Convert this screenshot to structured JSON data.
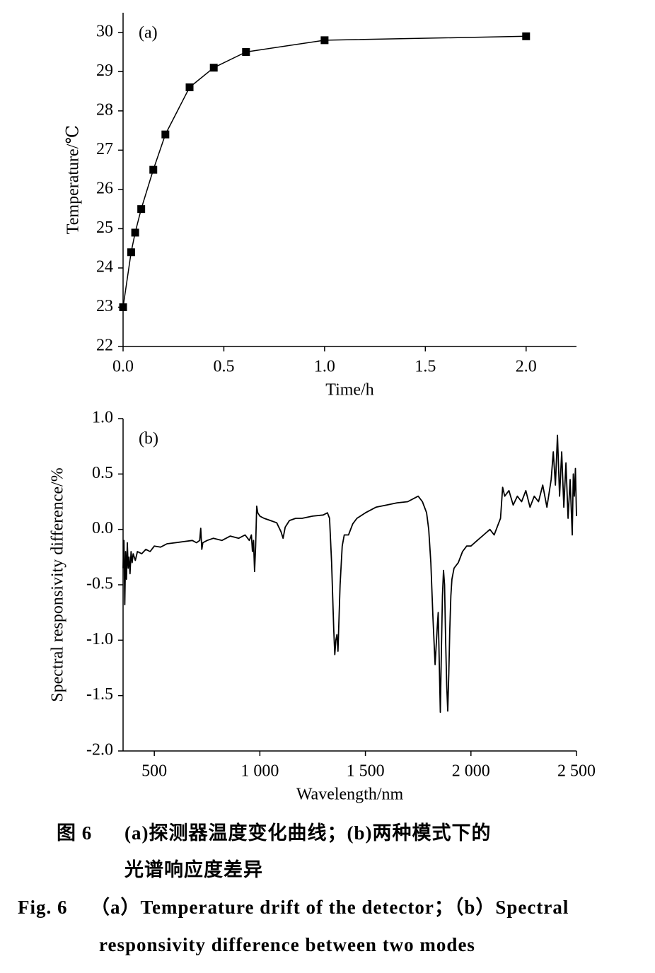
{
  "chart_data": [
    {
      "type": "line",
      "annotation": "(a)",
      "xlabel": "Time/h",
      "ylabel": "Temperature/℃",
      "x": [
        0,
        0.04,
        0.06,
        0.09,
        0.15,
        0.21,
        0.33,
        0.45,
        0.61,
        1.0,
        2.0
      ],
      "values": [
        23,
        24.4,
        24.9,
        25.5,
        26.5,
        27.4,
        28.6,
        29.1,
        29.5,
        29.8,
        29.9
      ],
      "color": "#000000",
      "marker": "square",
      "xlim": [
        0,
        2.25
      ],
      "ylim": [
        22,
        30.5
      ],
      "xticks": [
        {
          "value": 0,
          "label": "0.0"
        },
        0.5,
        {
          "value": 1,
          "label": "1.0"
        },
        1.5,
        {
          "value": 2,
          "label": "2.0"
        }
      ],
      "yticks": [
        22,
        23,
        24,
        25,
        26,
        27,
        28,
        29,
        30
      ]
    },
    {
      "type": "line",
      "annotation": "(b)",
      "xlabel": "Wavelength/nm",
      "ylabel": "Spectral responsivity difference/%",
      "x": [
        352,
        356,
        360,
        364,
        368,
        372,
        376,
        380,
        385,
        390,
        395,
        400,
        410,
        420,
        440,
        460,
        480,
        500,
        530,
        560,
        600,
        640,
        680,
        700,
        715,
        720,
        725,
        730,
        750,
        780,
        820,
        860,
        900,
        930,
        950,
        960,
        965,
        970,
        975,
        980,
        985,
        990,
        1000,
        1020,
        1050,
        1080,
        1100,
        1110,
        1120,
        1140,
        1170,
        1200,
        1250,
        1300,
        1320,
        1330,
        1340,
        1350,
        1355,
        1360,
        1365,
        1370,
        1375,
        1380,
        1390,
        1400,
        1420,
        1440,
        1460,
        1500,
        1550,
        1600,
        1650,
        1700,
        1750,
        1770,
        1790,
        1800,
        1810,
        1820,
        1830,
        1840,
        1845,
        1850,
        1855,
        1860,
        1865,
        1870,
        1875,
        1880,
        1885,
        1890,
        1895,
        1900,
        1905,
        1910,
        1920,
        1940,
        1960,
        1980,
        2000,
        2030,
        2060,
        2090,
        2110,
        2130,
        2140,
        2150,
        2160,
        2180,
        2200,
        2220,
        2240,
        2260,
        2280,
        2300,
        2320,
        2340,
        2360,
        2380,
        2390,
        2400,
        2410,
        2420,
        2430,
        2440,
        2450,
        2460,
        2470,
        2480,
        2485,
        2490,
        2495,
        2500
      ],
      "values": [
        -0.35,
        -0.1,
        -0.68,
        -0.2,
        -0.45,
        -0.12,
        -0.35,
        -0.25,
        -0.4,
        -0.2,
        -0.3,
        -0.22,
        -0.28,
        -0.2,
        -0.22,
        -0.18,
        -0.2,
        -0.15,
        -0.16,
        -0.13,
        -0.12,
        -0.11,
        -0.1,
        -0.12,
        -0.1,
        0.01,
        -0.18,
        -0.12,
        -0.1,
        -0.08,
        -0.1,
        -0.06,
        -0.08,
        -0.05,
        -0.1,
        -0.05,
        -0.2,
        -0.1,
        -0.38,
        -0.15,
        0.21,
        0.15,
        0.12,
        0.1,
        0.08,
        0.06,
        -0.02,
        -0.08,
        0.02,
        0.08,
        0.1,
        0.1,
        0.12,
        0.13,
        0.15,
        0.1,
        -0.3,
        -0.9,
        -1.13,
        -1.0,
        -0.95,
        -1.1,
        -0.8,
        -0.5,
        -0.15,
        -0.05,
        -0.05,
        0.05,
        0.1,
        0.15,
        0.2,
        0.22,
        0.24,
        0.25,
        0.3,
        0.25,
        0.15,
        0.0,
        -0.3,
        -0.8,
        -1.22,
        -0.9,
        -0.75,
        -1.2,
        -1.65,
        -1.1,
        -0.6,
        -0.37,
        -0.5,
        -1.0,
        -1.4,
        -1.64,
        -1.3,
        -0.9,
        -0.6,
        -0.45,
        -0.35,
        -0.3,
        -0.2,
        -0.15,
        -0.15,
        -0.1,
        -0.05,
        0.0,
        -0.05,
        0.05,
        0.1,
        0.38,
        0.3,
        0.35,
        0.22,
        0.3,
        0.25,
        0.35,
        0.2,
        0.3,
        0.25,
        0.4,
        0.2,
        0.45,
        0.7,
        0.4,
        0.85,
        0.3,
        0.7,
        0.2,
        0.6,
        0.1,
        0.45,
        -0.05,
        0.5,
        0.3,
        0.55,
        0.12
      ],
      "color": "#000000",
      "xlim": [
        352,
        2500
      ],
      "ylim": [
        -2,
        1
      ],
      "xticks": [
        500,
        {
          "value": 1000,
          "label": "1 000"
        },
        {
          "value": 1500,
          "label": "1 500"
        },
        {
          "value": 2000,
          "label": "2 000"
        },
        {
          "value": 2500,
          "label": "2 500"
        }
      ],
      "yticks": [
        {
          "value": -2,
          "label": "-2.0"
        },
        {
          "value": -1.5,
          "label": "-1.5"
        },
        {
          "value": -1,
          "label": "-1.0"
        },
        {
          "value": -0.5,
          "label": "-0.5"
        },
        {
          "value": 0,
          "label": "0.0"
        },
        {
          "value": 0.5,
          "label": "0.5"
        },
        {
          "value": 1,
          "label": "1.0"
        }
      ]
    }
  ],
  "caption": {
    "cn_label": "图 6",
    "cn_line1": "(a)探测器温度变化曲线；(b)两种模式下的",
    "cn_line2": "光谱响应度差异",
    "en_label": "Fig. 6",
    "en_line1": "（a）Temperature drift of the detector；（b）Spectral",
    "en_line2": "responsivity difference between two modes"
  }
}
